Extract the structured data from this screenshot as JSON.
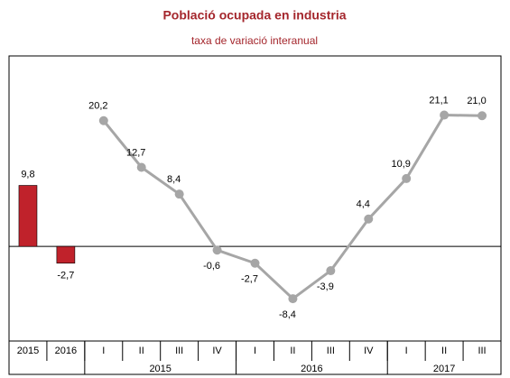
{
  "chart_data": {
    "type": "combo",
    "title": "Població ocupada en industria",
    "subtitle": "taxa de variació interanual",
    "categories": [
      "2015",
      "2016",
      "I",
      "II",
      "III",
      "IV",
      "I",
      "II",
      "III",
      "IV",
      "I",
      "II",
      "III"
    ],
    "groups": [
      {
        "label": "2015",
        "span": 4
      },
      {
        "label": "2016",
        "span": 4
      },
      {
        "label": "2017",
        "span": 3
      }
    ],
    "series": [
      {
        "type": "bar",
        "color": "#c0222b",
        "values": [
          9.8,
          -2.7,
          null,
          null,
          null,
          null,
          null,
          null,
          null,
          null,
          null,
          null,
          null
        ],
        "value_labels": [
          "9,8",
          "-2,7",
          null,
          null,
          null,
          null,
          null,
          null,
          null,
          null,
          null,
          null,
          null
        ]
      },
      {
        "type": "line",
        "color": "#a6a6a6",
        "values": [
          null,
          null,
          20.2,
          12.7,
          8.4,
          -0.6,
          -2.7,
          -8.4,
          -3.9,
          4.4,
          10.9,
          21.1,
          21.0
        ],
        "value_labels": [
          null,
          null,
          "20,2",
          "12,7",
          "8,4",
          "-0,6",
          "-2,7",
          "-8,4",
          "-3,9",
          "4,4",
          "10,9",
          "21,1",
          "21,0"
        ]
      }
    ],
    "ylim": [
      -15.2,
      30.6
    ]
  }
}
